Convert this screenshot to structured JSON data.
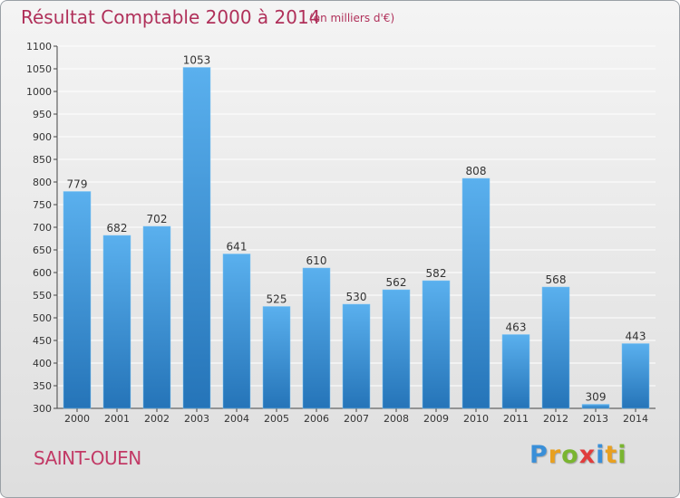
{
  "title": "Résultat Comptable 2000 à 2014",
  "subtitle": "(en milliers d'€)",
  "commune": "SAINT-OUEN",
  "logo": {
    "letters": [
      "P",
      "r",
      "o",
      "x",
      "i",
      "t",
      "i"
    ],
    "colors": [
      "#3a8fd8",
      "#e8a020",
      "#7ab530",
      "#e03c3c",
      "#3a8fd8",
      "#e8a020",
      "#7ab530"
    ]
  },
  "colors": {
    "title": "#b0305a",
    "bar_top": "#5ab0ee",
    "bar_bottom": "#2574b8",
    "axis": "#444444",
    "grid": "#ffffff"
  },
  "chart_data": {
    "type": "bar",
    "title": "Résultat Comptable 2000 à 2014",
    "ylabel": "",
    "xlabel": "",
    "categories": [
      "2000",
      "2001",
      "2002",
      "2003",
      "2004",
      "2005",
      "2006",
      "2007",
      "2008",
      "2009",
      "2010",
      "2011",
      "2012",
      "2013",
      "2014"
    ],
    "values": [
      779,
      682,
      702,
      1053,
      641,
      525,
      610,
      530,
      562,
      582,
      808,
      463,
      568,
      309,
      443
    ],
    "ylim": [
      300,
      1100
    ],
    "yticks": [
      300,
      350,
      400,
      450,
      500,
      550,
      600,
      650,
      700,
      750,
      800,
      850,
      900,
      950,
      1000,
      1050,
      1100
    ],
    "grid": true
  }
}
